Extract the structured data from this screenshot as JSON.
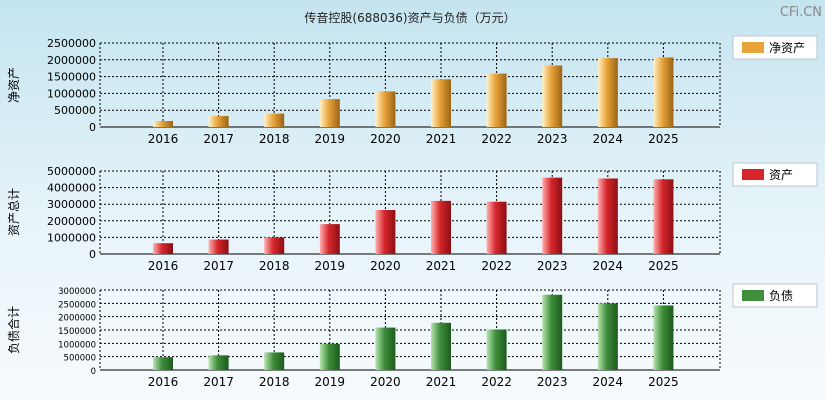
{
  "title": "传音控股(688036)资产与负债（万元）",
  "watermark": "CFi.CN",
  "chart_data": [
    {
      "type": "bar",
      "ylabel": "净资产",
      "legend": "净资产",
      "categories": [
        "2016",
        "2017",
        "2018",
        "2019",
        "2020",
        "2021",
        "2022",
        "2023",
        "2024",
        "2025"
      ],
      "series": [
        {
          "name": "净资产",
          "values": [
            180000,
            330000,
            400000,
            830000,
            1060000,
            1420000,
            1590000,
            1830000,
            2050000,
            2070000
          ]
        }
      ],
      "yticks": [
        0,
        500000,
        1000000,
        1500000,
        2000000,
        2500000
      ],
      "ylim": [
        0,
        2500000
      ],
      "color": "#e8a33a",
      "grid": true,
      "legend_position": "right"
    },
    {
      "type": "bar",
      "ylabel": "资产总计",
      "legend": "资产",
      "categories": [
        "2016",
        "2017",
        "2018",
        "2019",
        "2020",
        "2021",
        "2022",
        "2023",
        "2024",
        "2025"
      ],
      "series": [
        {
          "name": "资产",
          "values": [
            650000,
            870000,
            1000000,
            1800000,
            2650000,
            3200000,
            3150000,
            4600000,
            4550000,
            4500000
          ]
        }
      ],
      "yticks": [
        0,
        1000000,
        2000000,
        3000000,
        4000000,
        5000000
      ],
      "ylim": [
        0,
        5000000
      ],
      "color": "#d7262b",
      "grid": true,
      "legend_position": "right"
    },
    {
      "type": "bar",
      "ylabel": "负债合计",
      "legend": "负债",
      "categories": [
        "2016",
        "2017",
        "2018",
        "2019",
        "2020",
        "2021",
        "2022",
        "2023",
        "2024",
        "2025"
      ],
      "series": [
        {
          "name": "负债",
          "values": [
            480000,
            550000,
            660000,
            980000,
            1590000,
            1770000,
            1520000,
            2820000,
            2500000,
            2420000
          ]
        }
      ],
      "yticks": [
        0,
        500000,
        1000000,
        1500000,
        2000000,
        2500000,
        3000000
      ],
      "ylim": [
        0,
        3000000
      ],
      "color": "#3e8e3b",
      "grid": true,
      "legend_position": "right"
    }
  ]
}
